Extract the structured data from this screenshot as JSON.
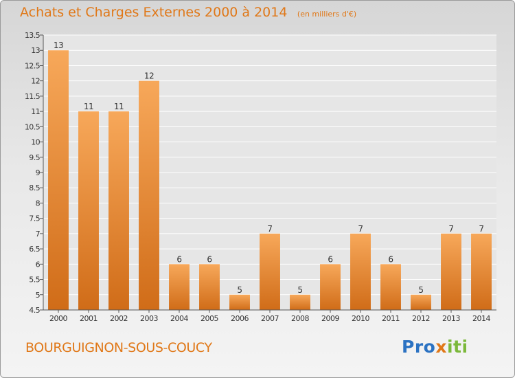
{
  "title": "Achats et Charges Externes 2000 à 2014",
  "unit": "(en milliers d'€)",
  "commune": "BOURGUIGNON-SOUS-COUCY",
  "logo": "Proxiti",
  "colors": {
    "title": "#e07818",
    "bar_light": "#f7a85a",
    "bar_dark": "#d06c18",
    "grid": "#ffffff",
    "axis_text": "#333333"
  },
  "chart_data": {
    "type": "bar",
    "title": "Achats et Charges Externes 2000 à 2014",
    "subtitle": "(en milliers d'€)",
    "xlabel": "",
    "ylabel": "",
    "categories": [
      "2000",
      "2001",
      "2002",
      "2003",
      "2004",
      "2005",
      "2006",
      "2007",
      "2008",
      "2009",
      "2010",
      "2011",
      "2012",
      "2013",
      "2014"
    ],
    "values": [
      13,
      11,
      11,
      12,
      6,
      6,
      5,
      7,
      5,
      6,
      7,
      6,
      5,
      7,
      7
    ],
    "data_labels": [
      "13",
      "11",
      "11",
      "12",
      "6",
      "6",
      "5",
      "7",
      "5",
      "6",
      "7",
      "6",
      "5",
      "7",
      "7"
    ],
    "ylim": [
      4.5,
      13.5
    ],
    "yticks": [
      4.5,
      5,
      5.5,
      6,
      6.5,
      7,
      7.5,
      8,
      8.5,
      9,
      9.5,
      10,
      10.5,
      11,
      11.5,
      12,
      12.5,
      13,
      13.5
    ],
    "ytick_labels": [
      "4.5",
      "5",
      "5.5",
      "6",
      "6.5",
      "7",
      "7.5",
      "8",
      "8.5",
      "9",
      "9.5",
      "10",
      "10.5",
      "11",
      "11.5",
      "12",
      "12.5",
      "13",
      "13.5"
    ],
    "grid": true,
    "legend": "none"
  }
}
